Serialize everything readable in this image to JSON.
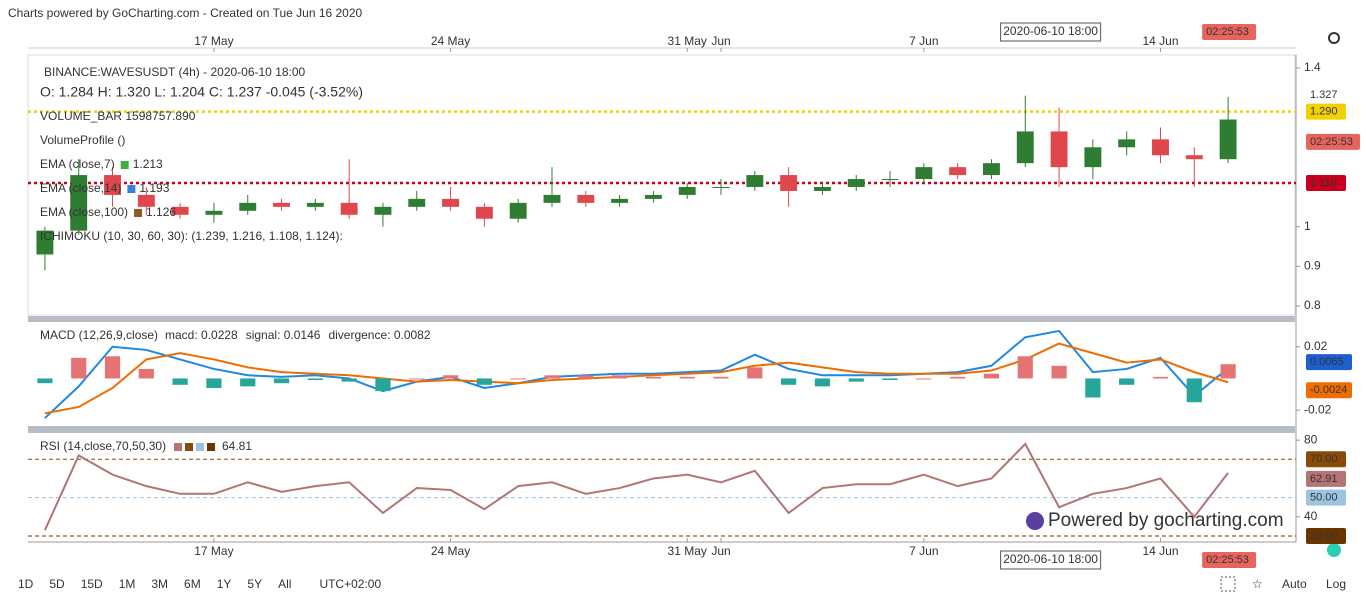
{
  "header": "Charts powered by GoCharting.com - Created on Tue Jun 16 2020",
  "countdown": "02:25:53",
  "watermark": "Powered by gocharting.com",
  "toolbar": {
    "ranges": [
      "1D",
      "5D",
      "15D",
      "1M",
      "3M",
      "6M",
      "1Y",
      "5Y",
      "All"
    ],
    "timezone": "UTC+02:00",
    "scale_modes": [
      "Auto",
      "Log"
    ]
  },
  "chart_data": [
    {
      "type": "candlestick",
      "title": "BINANCE:WAVESUSDT (4h) - 2020-06-10 18:00",
      "ohlc_text": "O: 1.284 H: 1.320 L: 1.204 C: 1.237 -0.045 (-3.52%)",
      "legend": [
        {
          "text": "VOLUME_BAR 1598757.890"
        },
        {
          "text": "VolumeProfile ()"
        },
        {
          "text": "EMA (close,7)",
          "value": 1.213,
          "color": "#3cb043"
        },
        {
          "text": "EMA (close,14)",
          "value": 1.193,
          "color": "#3b7ddd"
        },
        {
          "text": "EMA (close,100)",
          "value": 1.126,
          "color": "#8b5a2b"
        },
        {
          "text": "ICHIMOKU (10, 30, 60, 30): (1.239, 1.216, 1.108, 1.124):"
        }
      ],
      "crosshair": {
        "label": "2020-06-10 18:00",
        "x": 29.75
      },
      "categories": [
        null,
        null,
        null,
        null,
        null,
        null,
        null,
        null,
        null,
        null,
        null,
        null,
        null,
        null,
        null,
        null,
        null,
        null,
        null,
        null,
        null,
        null,
        null,
        null,
        null,
        null,
        null,
        null,
        null,
        null,
        null,
        null,
        null,
        null,
        null,
        null
      ],
      "open": [
        0.93,
        0.99,
        1.13,
        1.08,
        1.05,
        1.03,
        1.04,
        1.06,
        1.05,
        1.06,
        1.03,
        1.05,
        1.07,
        1.05,
        1.02,
        1.06,
        1.08,
        1.06,
        1.07,
        1.08,
        1.1,
        1.1,
        1.13,
        1.09,
        1.1,
        1.12,
        1.12,
        1.15,
        1.13,
        1.16,
        1.24,
        1.15,
        1.2,
        1.22,
        1.18,
        1.17
      ],
      "high": [
        1.0,
        1.17,
        1.15,
        1.1,
        1.06,
        1.06,
        1.08,
        1.07,
        1.07,
        1.17,
        1.06,
        1.09,
        1.1,
        1.06,
        1.07,
        1.15,
        1.09,
        1.08,
        1.09,
        1.11,
        1.12,
        1.14,
        1.15,
        1.11,
        1.13,
        1.14,
        1.16,
        1.16,
        1.17,
        1.33,
        1.3,
        1.22,
        1.24,
        1.25,
        1.2,
        1.327
      ],
      "low": [
        0.89,
        0.98,
        1.05,
        1.03,
        1.02,
        1.01,
        1.03,
        1.04,
        1.04,
        1.02,
        1.0,
        1.04,
        1.04,
        1.0,
        1.01,
        1.05,
        1.05,
        1.05,
        1.06,
        1.07,
        1.08,
        1.09,
        1.05,
        1.08,
        1.09,
        1.1,
        1.11,
        1.12,
        1.12,
        1.15,
        1.1,
        1.12,
        1.18,
        1.16,
        1.1,
        1.16
      ],
      "close": [
        0.99,
        1.13,
        1.08,
        1.05,
        1.03,
        1.04,
        1.06,
        1.05,
        1.06,
        1.03,
        1.05,
        1.07,
        1.05,
        1.02,
        1.06,
        1.08,
        1.06,
        1.07,
        1.08,
        1.1,
        1.1,
        1.13,
        1.09,
        1.1,
        1.12,
        1.12,
        1.15,
        1.13,
        1.16,
        1.24,
        1.15,
        1.2,
        1.22,
        1.18,
        1.17,
        1.27
      ],
      "up_color": "#2e7d32",
      "down_color": "#e0474c",
      "xlim": [
        -0.5,
        35.5
      ],
      "xticks": [
        {
          "value": 5,
          "label": "17 May"
        },
        {
          "value": 12,
          "label": "24 May"
        },
        {
          "value": 19,
          "label": "31 May"
        },
        {
          "value": 20,
          "label": "Jun"
        },
        {
          "value": 26,
          "label": "7 Jun"
        },
        {
          "value": 33,
          "label": "14 Jun"
        }
      ],
      "ylim": [
        0.7775,
        1.4325
      ],
      "yticks": [
        1.4,
        1.0,
        0.9,
        0.8
      ],
      "lines": [
        {
          "value": 1.29,
          "label": "1.290",
          "color": "#f2d100"
        },
        {
          "value": 1.11,
          "label": "1.110",
          "color": "#c8001e"
        }
      ]
    },
    {
      "type": "macd",
      "title": "MACD (12,26,9,close)",
      "legend": [
        {
          "text": "macd: 0.0228",
          "color": "#1e88e5"
        },
        {
          "text": "signal: 0.0146",
          "color": "#ef6c00"
        },
        {
          "text": "divergence: 0.0082",
          "color": "#ef6c00"
        }
      ],
      "series": [
        {
          "color": "#1e88e5",
          "values": [
            -0.025,
            -0.005,
            0.02,
            0.018,
            0.012,
            0.006,
            0.002,
            0.001,
            0.002,
            0.0,
            -0.008,
            -0.002,
            0.001,
            -0.006,
            -0.003,
            0.001,
            0.002,
            0.003,
            0.003,
            0.004,
            0.005,
            0.015,
            0.006,
            0.002,
            0.002,
            0.002,
            0.003,
            0.004,
            0.008,
            0.026,
            0.03,
            0.004,
            0.006,
            0.013,
            -0.011,
            0.0065
          ]
        },
        {
          "color": "#ef6c00",
          "values": [
            -0.022,
            -0.018,
            -0.006,
            0.012,
            0.016,
            0.012,
            0.007,
            0.004,
            0.003,
            0.002,
            0.0,
            -0.002,
            -0.001,
            -0.002,
            -0.003,
            -0.001,
            0.0,
            0.001,
            0.002,
            0.003,
            0.004,
            0.008,
            0.01,
            0.007,
            0.004,
            0.003,
            0.003,
            0.003,
            0.005,
            0.012,
            0.022,
            0.016,
            0.01,
            0.012,
            0.004,
            -0.0024
          ]
        },
        {
          "type": "histogram",
          "up_color": "#e57373",
          "down_color": "#26a69a",
          "values": [
            -0.003,
            0.013,
            0.014,
            0.006,
            -0.004,
            -0.006,
            -0.005,
            -0.003,
            -0.001,
            -0.002,
            -0.008,
            0.0,
            0.002,
            -0.004,
            0.0,
            0.002,
            0.002,
            0.002,
            0.001,
            0.001,
            0.001,
            0.007,
            -0.004,
            -0.005,
            -0.002,
            -0.001,
            0.0,
            0.001,
            0.003,
            0.014,
            0.008,
            -0.012,
            -0.004,
            0.001,
            -0.015,
            0.009
          ]
        }
      ],
      "ylim": [
        -0.029375,
        0.035
      ],
      "yticks": [
        0.02,
        -0.02
      ]
    },
    {
      "type": "line",
      "title": "RSI (14,close,70,50,30)",
      "legend_value": 64.81,
      "series": [
        {
          "color": "#b47474",
          "values": [
            33,
            72,
            62,
            56,
            52,
            52,
            58,
            53,
            56,
            58,
            42,
            55,
            54,
            44,
            56,
            58,
            52,
            55,
            60,
            62,
            58,
            64,
            42,
            55,
            57,
            57,
            62,
            56,
            60,
            78,
            45,
            52,
            55,
            60,
            40,
            62.91
          ]
        }
      ],
      "ylim": [
        27.9,
        83.2
      ],
      "yticks": [
        80,
        40
      ],
      "levels": [
        {
          "value": 70,
          "label": "70.00",
          "color": "#8a4b08"
        },
        {
          "value": 50,
          "label": "50.00",
          "color": "#9cc3e0"
        },
        {
          "value": 30,
          "label": "30.00",
          "color": "#6b3500"
        }
      ]
    }
  ]
}
